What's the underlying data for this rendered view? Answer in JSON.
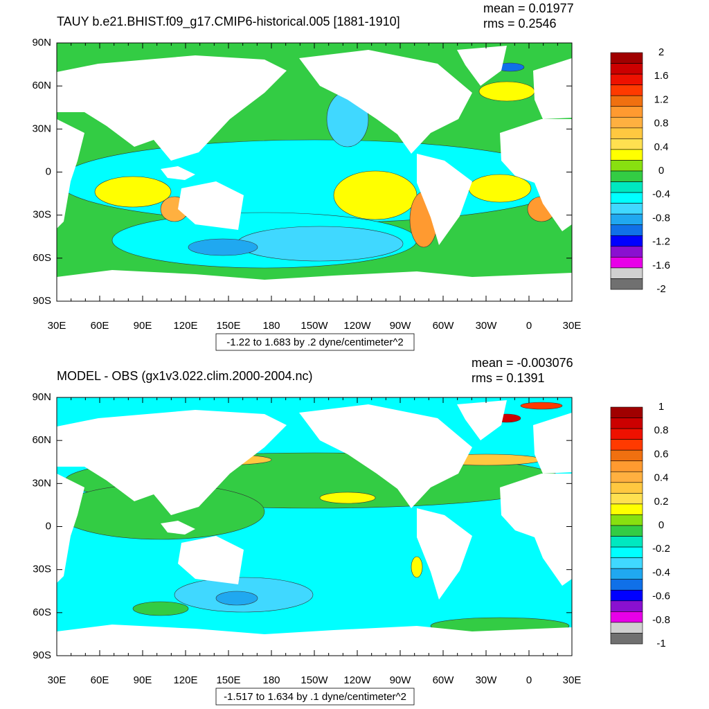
{
  "panels": [
    {
      "title": "TAUY b.e21.BHIST.f09_g17.CMIP6-historical.005 [1881-1910]",
      "mean": "mean = 0.01977",
      "rms": "rms = 0.2546",
      "range_label": "-1.22 to 1.683 by .2 dyne/centimeter^2",
      "lat_labels": [
        "90N",
        "60N",
        "30N",
        "0",
        "30S",
        "60S",
        "90S"
      ],
      "lon_labels": [
        "30E",
        "60E",
        "90E",
        "120E",
        "150E",
        "180",
        "150W",
        "120W",
        "90W",
        "60W",
        "30W",
        "0",
        "30E"
      ],
      "colorbar": {
        "labels": [
          "2",
          "1.6",
          "1.2",
          "0.8",
          "0.4",
          "0",
          "-0.4",
          "-0.8",
          "-1.2",
          "-1.6",
          "-2"
        ],
        "colors": [
          "#a00000",
          "#cc0000",
          "#ee1100",
          "#ff3a00",
          "#f07010",
          "#ff9a30",
          "#ffb040",
          "#ffc840",
          "#ffe050",
          "#ffff00",
          "#88e010",
          "#33cc44",
          "#00e8c0",
          "#00ffff",
          "#40d8ff",
          "#20a8f0",
          "#1070e8",
          "#0000ff",
          "#8a10d0",
          "#e800e8"
        ]
      }
    },
    {
      "title": "MODEL - OBS (gx1v3.022.clim.2000-2004.nc)",
      "mean": "mean = -0.003076",
      "rms": "rms = 0.1391",
      "range_label": "-1.517 to 1.634 by .1 dyne/centimeter^2",
      "lat_labels": [
        "90N",
        "60N",
        "30N",
        "0",
        "30S",
        "60S",
        "90S"
      ],
      "lon_labels": [
        "30E",
        "60E",
        "90E",
        "120E",
        "150E",
        "180",
        "150W",
        "120W",
        "90W",
        "60W",
        "30W",
        "0",
        "30E"
      ],
      "colorbar": {
        "labels": [
          "1",
          "0.8",
          "0.6",
          "0.4",
          "0.2",
          "0",
          "-0.2",
          "-0.4",
          "-0.6",
          "-0.8",
          "-1"
        ],
        "colors": [
          "#a00000",
          "#cc0000",
          "#ee1100",
          "#ff3a00",
          "#f07010",
          "#ff9a30",
          "#ffb040",
          "#ffc840",
          "#ffe050",
          "#ffff00",
          "#88e010",
          "#33cc44",
          "#00e8c0",
          "#00ffff",
          "#40d8ff",
          "#20a8f0",
          "#1070e8",
          "#0000ff",
          "#8a10d0",
          "#e800e8"
        ]
      }
    }
  ]
}
